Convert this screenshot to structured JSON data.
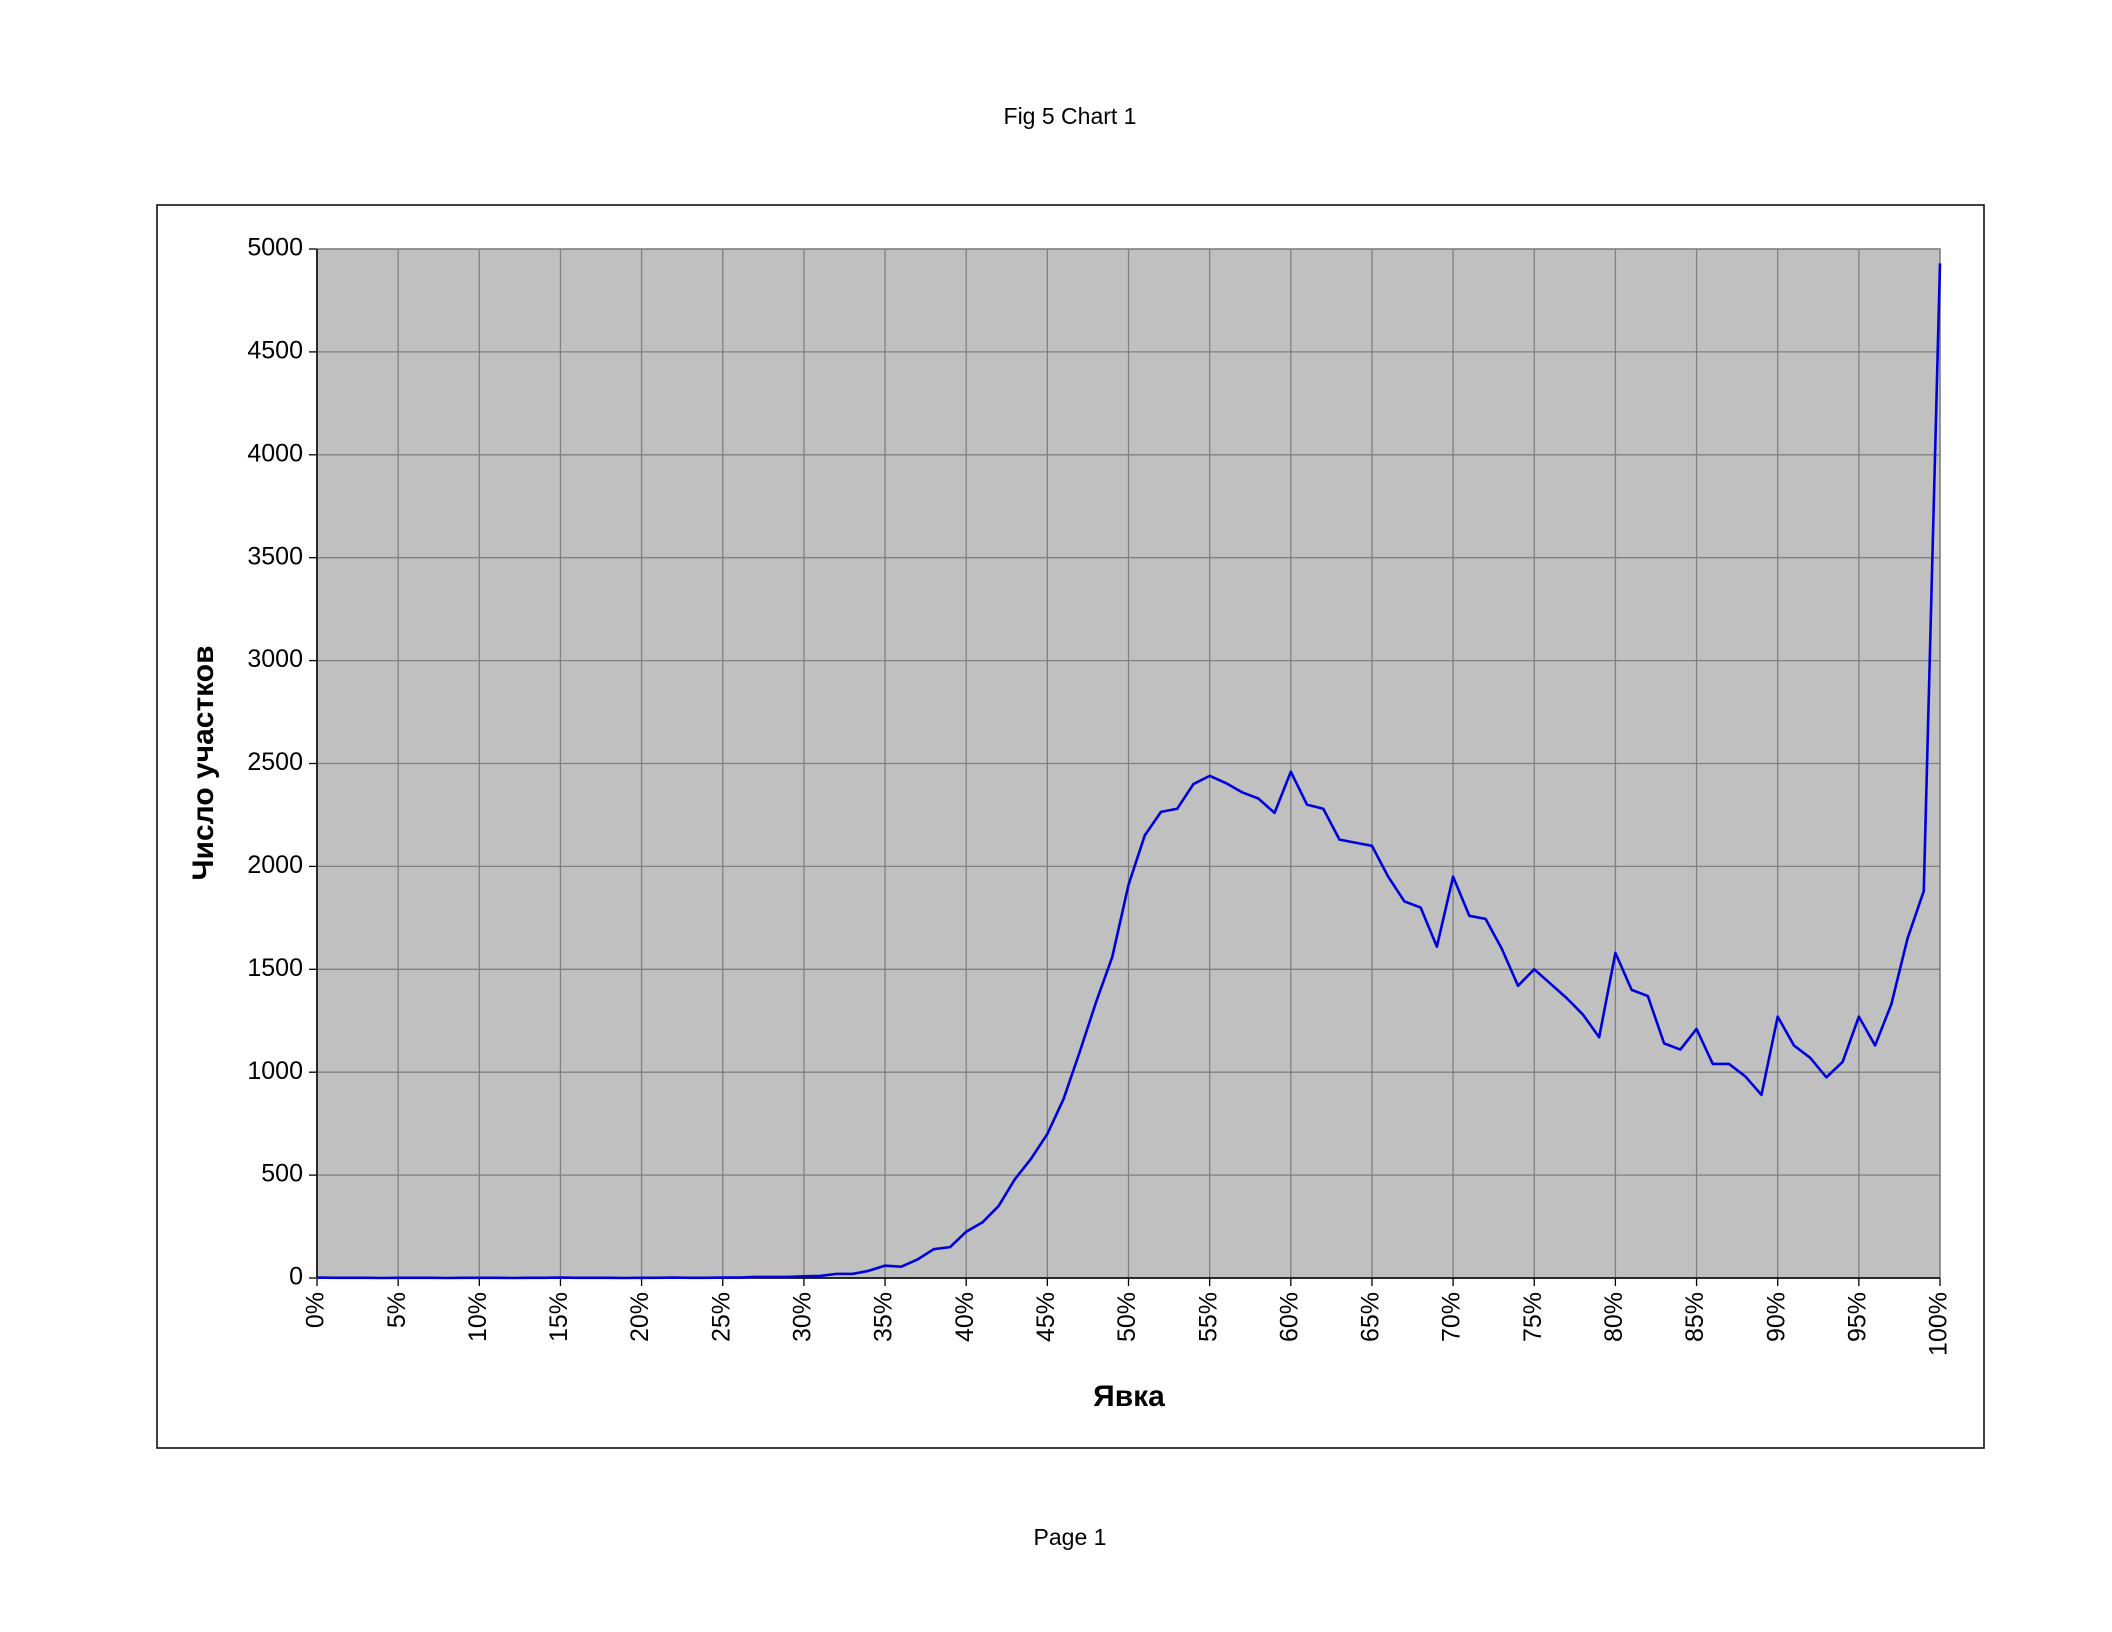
{
  "chart_data": {
    "type": "line",
    "title": "Fig 5 Chart 1",
    "x_label": "Явка",
    "y_label": "Число участков",
    "x": [
      0,
      1,
      2,
      3,
      4,
      5,
      6,
      7,
      8,
      9,
      10,
      11,
      12,
      13,
      14,
      15,
      16,
      17,
      18,
      19,
      20,
      21,
      22,
      23,
      24,
      25,
      26,
      27,
      28,
      29,
      30,
      31,
      32,
      33,
      34,
      35,
      36,
      37,
      38,
      39,
      40,
      41,
      42,
      43,
      44,
      45,
      46,
      47,
      48,
      49,
      50,
      51,
      52,
      53,
      54,
      55,
      56,
      57,
      58,
      59,
      60,
      61,
      62,
      63,
      64,
      65,
      66,
      67,
      68,
      69,
      70,
      71,
      72,
      73,
      74,
      75,
      76,
      77,
      78,
      79,
      80,
      81,
      82,
      83,
      84,
      85,
      86,
      87,
      88,
      89,
      90,
      91,
      92,
      93,
      94,
      95,
      96,
      97,
      98,
      99,
      100
    ],
    "values": [
      2,
      1,
      1,
      1,
      0,
      1,
      1,
      1,
      0,
      1,
      1,
      1,
      0,
      1,
      1,
      2,
      1,
      1,
      1,
      0,
      1,
      1,
      2,
      1,
      1,
      2,
      2,
      5,
      5,
      5,
      8,
      10,
      20,
      20,
      35,
      60,
      55,
      90,
      140,
      150,
      225,
      270,
      350,
      480,
      580,
      700,
      870,
      1100,
      1340,
      1560,
      1910,
      2150,
      2265,
      2280,
      2400,
      2440,
      2405,
      2360,
      2330,
      2260,
      2460,
      2300,
      2280,
      2130,
      2115,
      2100,
      1950,
      1830,
      1800,
      1610,
      1950,
      1760,
      1745,
      1600,
      1420,
      1500,
      1430,
      1360,
      1280,
      1170,
      1580,
      1400,
      1370,
      1140,
      1110,
      1210,
      1040,
      1040,
      980,
      890,
      1270,
      1130,
      1070,
      975,
      1050,
      1270,
      1130,
      1330,
      1650,
      1880,
      4930
    ],
    "color": "#0000dd",
    "xlim": [
      0,
      100
    ],
    "xticks": [
      {
        "value": 0,
        "label": "0%"
      },
      {
        "value": 5,
        "label": "5%"
      },
      {
        "value": 10,
        "label": "10%"
      },
      {
        "value": 15,
        "label": "15%"
      },
      {
        "value": 20,
        "label": "20%"
      },
      {
        "value": 25,
        "label": "25%"
      },
      {
        "value": 30,
        "label": "30%"
      },
      {
        "value": 35,
        "label": "35%"
      },
      {
        "value": 40,
        "label": "40%"
      },
      {
        "value": 45,
        "label": "45%"
      },
      {
        "value": 50,
        "label": "50%"
      },
      {
        "value": 55,
        "label": "55%"
      },
      {
        "value": 60,
        "label": "60%"
      },
      {
        "value": 65,
        "label": "65%"
      },
      {
        "value": 70,
        "label": "70%"
      },
      {
        "value": 75,
        "label": "75%"
      },
      {
        "value": 80,
        "label": "80%"
      },
      {
        "value": 85,
        "label": "85%"
      },
      {
        "value": 90,
        "label": "90%"
      },
      {
        "value": 95,
        "label": "95%"
      },
      {
        "value": 100,
        "label": "100%"
      }
    ],
    "ylim": [
      0,
      5000
    ],
    "yticks": [
      0,
      500,
      1000,
      1500,
      2000,
      2500,
      3000,
      3500,
      4000,
      4500,
      5000
    ],
    "grid": true
  },
  "page_footer": "Page 1"
}
